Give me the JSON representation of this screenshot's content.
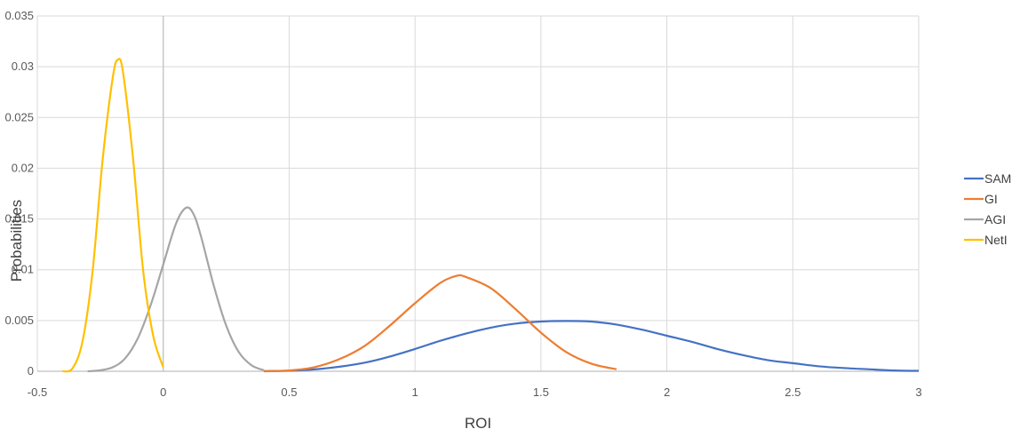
{
  "chart_data": {
    "type": "line",
    "title": "",
    "xlabel": "ROI",
    "ylabel": "Probabilities",
    "xlim": [
      -0.5,
      3
    ],
    "ylim": [
      0,
      0.035
    ],
    "x_ticks": [
      "-0.5",
      "0",
      "0.5",
      "1",
      "1.5",
      "2",
      "2.5",
      "3"
    ],
    "y_ticks": [
      "0",
      "0.005",
      "0.01",
      "0.015",
      "0.02",
      "0.025",
      "0.03",
      "0.035"
    ],
    "grid": true,
    "legend_position": "right",
    "series": [
      {
        "name": "SAM",
        "color": "#4472c4",
        "points": [
          [
            0.4,
            2e-05
          ],
          [
            0.5,
            5e-05
          ],
          [
            0.6,
            0.00018
          ],
          [
            0.7,
            0.00045
          ],
          [
            0.8,
            0.00085
          ],
          [
            0.9,
            0.00145
          ],
          [
            1.0,
            0.0022
          ],
          [
            1.1,
            0.003
          ],
          [
            1.2,
            0.0037
          ],
          [
            1.3,
            0.0043
          ],
          [
            1.4,
            0.0047
          ],
          [
            1.5,
            0.0049
          ],
          [
            1.6,
            0.00495
          ],
          [
            1.7,
            0.0049
          ],
          [
            1.8,
            0.0046
          ],
          [
            1.9,
            0.0041
          ],
          [
            2.0,
            0.0035
          ],
          [
            2.1,
            0.0029
          ],
          [
            2.2,
            0.0022
          ],
          [
            2.3,
            0.0016
          ],
          [
            2.4,
            0.0011
          ],
          [
            2.5,
            0.0008
          ],
          [
            2.6,
            0.0005
          ],
          [
            2.7,
            0.00032
          ],
          [
            2.8,
            0.0002
          ],
          [
            2.9,
            8e-05
          ],
          [
            3.0,
            4e-05
          ]
        ]
      },
      {
        "name": "GI",
        "color": "#ed7d31",
        "points": [
          [
            0.4,
            0.0
          ],
          [
            0.5,
            8e-05
          ],
          [
            0.6,
            0.0004
          ],
          [
            0.7,
            0.0012
          ],
          [
            0.8,
            0.0025
          ],
          [
            0.9,
            0.0045
          ],
          [
            1.0,
            0.0067
          ],
          [
            1.1,
            0.0087
          ],
          [
            1.165,
            0.0094
          ],
          [
            1.2,
            0.0093
          ],
          [
            1.3,
            0.0082
          ],
          [
            1.4,
            0.0061
          ],
          [
            1.5,
            0.0038
          ],
          [
            1.6,
            0.0019
          ],
          [
            1.7,
            0.00075
          ],
          [
            1.8,
            0.0002
          ]
        ]
      },
      {
        "name": "AGI",
        "color": "#a5a5a5",
        "points": [
          [
            -0.3,
            0.0
          ],
          [
            -0.25,
            0.0001
          ],
          [
            -0.2,
            0.0004
          ],
          [
            -0.15,
            0.0013
          ],
          [
            -0.1,
            0.0033
          ],
          [
            -0.05,
            0.0065
          ],
          [
            0.0,
            0.0105
          ],
          [
            0.05,
            0.0145
          ],
          [
            0.09,
            0.0161
          ],
          [
            0.12,
            0.0155
          ],
          [
            0.15,
            0.0133
          ],
          [
            0.2,
            0.0085
          ],
          [
            0.25,
            0.0045
          ],
          [
            0.3,
            0.0019
          ],
          [
            0.35,
            0.0006
          ],
          [
            0.4,
            0.0001
          ]
        ]
      },
      {
        "name": "NetI",
        "color": "#ffc000",
        "points": [
          [
            -0.4,
            0.0
          ],
          [
            -0.36,
            0.0003
          ],
          [
            -0.32,
            0.003
          ],
          [
            -0.28,
            0.01
          ],
          [
            -0.24,
            0.021
          ],
          [
            -0.2,
            0.029
          ],
          [
            -0.18,
            0.0307
          ],
          [
            -0.16,
            0.0295
          ],
          [
            -0.12,
            0.021
          ],
          [
            -0.08,
            0.01
          ],
          [
            -0.04,
            0.0035
          ],
          [
            0.0,
            0.0004
          ]
        ]
      }
    ]
  }
}
